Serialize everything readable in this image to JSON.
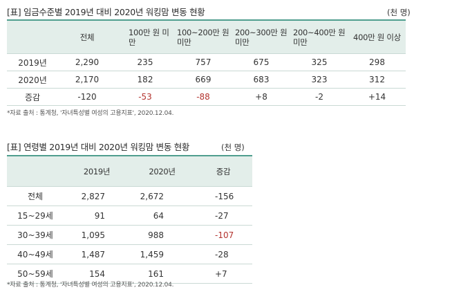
{
  "table1": {
    "title": "[표] 임금수준별 2019년 대비 2020년 워킹맘 변동 현황",
    "unit": "(천 명)",
    "headers": [
      "",
      "전체",
      "100만 원 미만",
      "100~200만 원 미만",
      "200~300만 원 미만",
      "200~400만 원 미만",
      "400만 원 이상"
    ],
    "rows": [
      {
        "label": "2019년",
        "values": [
          "2,290",
          "235",
          "757",
          "675",
          "325",
          "298"
        ]
      },
      {
        "label": "2020년",
        "values": [
          "2,170",
          "182",
          "669",
          "683",
          "323",
          "312"
        ]
      },
      {
        "label": "증감",
        "values": [
          "-120",
          "-53",
          "-88",
          "+8",
          "-2",
          "+14"
        ]
      }
    ],
    "highlight_color": "#b3332e",
    "source": "*자료 출처 : 통계청, '자녀특성별 여성의 고용지표', 2020.12.04."
  },
  "table2": {
    "title": "[표] 연령별 2019년 대비 2020년 워킹맘 변동 현황",
    "unit": "(천 명)",
    "headers": [
      "",
      "2019년",
      "2020년",
      "증감"
    ],
    "rows": [
      {
        "label": "전체",
        "values": [
          "2,827",
          "2,672",
          "-156"
        ]
      },
      {
        "label": "15~29세",
        "values": [
          "91",
          "64",
          "-27"
        ]
      },
      {
        "label": "30~39세",
        "values": [
          "1,095",
          "988",
          "-107"
        ]
      },
      {
        "label": "40~49세",
        "values": [
          "1,487",
          "1,459",
          "-28"
        ]
      },
      {
        "label": "50~59세",
        "values": [
          "154",
          "161",
          "+7"
        ]
      }
    ],
    "highlight_color": "#b3332e",
    "source": "*자료 출처 : 통계청, '자녀특성별 여성의 고용지표', 2020.12.04."
  }
}
